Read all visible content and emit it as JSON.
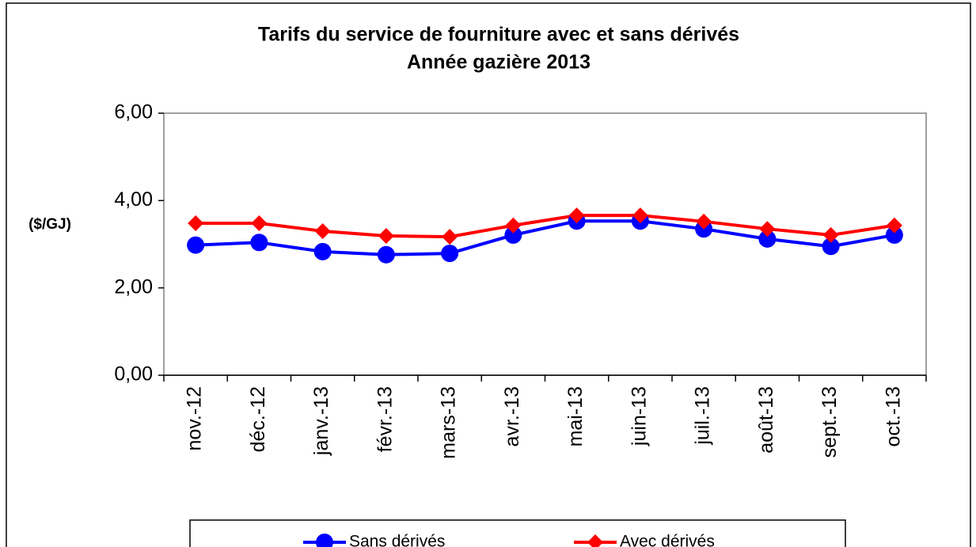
{
  "chart_data": {
    "type": "line",
    "title": "Tarifs du service de fourniture avec et sans dérivés",
    "subtitle": "Année gazière 2013",
    "y_label": "($/GJ)",
    "categories": [
      "nov.-12",
      "déc.-12",
      "janv.-13",
      "févr.-13",
      "mars-13",
      "avr.-13",
      "mai-13",
      "juin-13",
      "juil.-13",
      "août-13",
      "sept.-13",
      "oct.-13"
    ],
    "series": [
      {
        "name": "Sans dérivés",
        "color": "#0000ff",
        "marker": "circle",
        "values": [
          2.98,
          3.04,
          2.83,
          2.76,
          2.79,
          3.21,
          3.53,
          3.53,
          3.35,
          3.12,
          2.95,
          3.21
        ]
      },
      {
        "name": "Avec dérivés",
        "color": "#ff0000",
        "marker": "diamond",
        "values": [
          3.48,
          3.48,
          3.3,
          3.19,
          3.17,
          3.43,
          3.66,
          3.66,
          3.52,
          3.35,
          3.21,
          3.43
        ]
      }
    ],
    "ylim": [
      0,
      6
    ],
    "yticks": [
      {
        "value": 0,
        "label": "0,00"
      },
      {
        "value": 2,
        "label": "2,00"
      },
      {
        "value": 4,
        "label": "4,00"
      },
      {
        "value": 6,
        "label": "6,00"
      }
    ],
    "grid": false,
    "legend": "bottom"
  }
}
